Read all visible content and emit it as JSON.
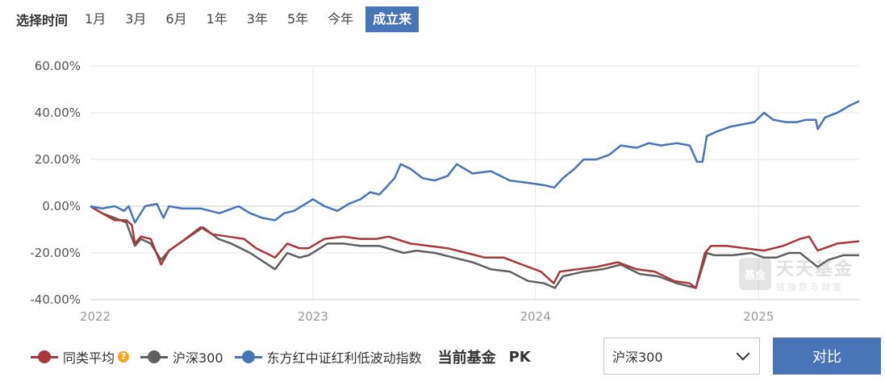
{
  "range_bar": {
    "label": "选择时间",
    "tabs": [
      "1月",
      "3月",
      "6月",
      "1年",
      "3年",
      "5年",
      "今年",
      "成立来"
    ],
    "active_index": 7
  },
  "watermark": {
    "logo": "基金",
    "title": "天天基金",
    "subtitle": "链接您与财富"
  },
  "legend": {
    "items": [
      {
        "label": "同类平均",
        "color": "#a8383b",
        "has_help": true
      },
      {
        "label": "沪深300",
        "color": "#606060",
        "has_help": false
      },
      {
        "label": "东方红中证红利低波动指数",
        "color": "#4a74b8",
        "has_help": false
      }
    ],
    "current_fund_label": "当前基金",
    "pk_label": "PK"
  },
  "compare": {
    "selected": "沪深300",
    "button_label": "对比"
  },
  "colors": {
    "accent": "#4a74b8",
    "peer": "#a8383b",
    "index": "#606060"
  },
  "chart_data": {
    "type": "line",
    "x_ticks": [
      "2022",
      "2023",
      "2024",
      "2025"
    ],
    "x_tick_dates": [
      "2022-01-01",
      "2023-01-01",
      "2024-01-01",
      "2025-01-01"
    ],
    "xlim": [
      "2022-01-01",
      "2025-06-15"
    ],
    "ylim": [
      -40,
      60
    ],
    "y_ticks": [
      -40,
      -20,
      0,
      20,
      40,
      60
    ],
    "y_tick_labels": [
      "-40.00%",
      "-20.00%",
      "0.00%",
      "20.00%",
      "40.00%",
      "60.00%"
    ],
    "grid": true,
    "legend_position": "bottom",
    "series": [
      {
        "name": "东方红中证红利低波动指数",
        "color": "#4a74b8",
        "points": [
          [
            "2022-01-01",
            0
          ],
          [
            "2022-01-20",
            -1
          ],
          [
            "2022-02-10",
            0
          ],
          [
            "2022-02-25",
            -2
          ],
          [
            "2022-03-05",
            0
          ],
          [
            "2022-03-15",
            -7
          ],
          [
            "2022-04-01",
            0
          ],
          [
            "2022-04-20",
            1
          ],
          [
            "2022-05-01",
            -5
          ],
          [
            "2022-05-10",
            0
          ],
          [
            "2022-06-01",
            -1
          ],
          [
            "2022-07-01",
            -1
          ],
          [
            "2022-08-01",
            -3
          ],
          [
            "2022-09-01",
            0
          ],
          [
            "2022-09-20",
            -3
          ],
          [
            "2022-10-10",
            -5
          ],
          [
            "2022-10-31",
            -6
          ],
          [
            "2022-11-15",
            -3
          ],
          [
            "2022-12-01",
            -2
          ],
          [
            "2022-12-20",
            1
          ],
          [
            "2023-01-01",
            3
          ],
          [
            "2023-01-20",
            0
          ],
          [
            "2023-02-10",
            -2
          ],
          [
            "2023-03-01",
            1
          ],
          [
            "2023-03-20",
            3
          ],
          [
            "2023-04-05",
            6
          ],
          [
            "2023-04-20",
            5
          ],
          [
            "2023-05-01",
            8
          ],
          [
            "2023-05-15",
            12
          ],
          [
            "2023-05-25",
            18
          ],
          [
            "2023-06-10",
            16
          ],
          [
            "2023-06-30",
            12
          ],
          [
            "2023-07-20",
            11
          ],
          [
            "2023-08-10",
            13
          ],
          [
            "2023-08-25",
            18
          ],
          [
            "2023-09-20",
            14
          ],
          [
            "2023-10-20",
            15
          ],
          [
            "2023-11-20",
            11
          ],
          [
            "2023-12-20",
            10
          ],
          [
            "2024-01-15",
            9
          ],
          [
            "2024-02-01",
            8
          ],
          [
            "2024-02-15",
            12
          ],
          [
            "2024-03-05",
            16
          ],
          [
            "2024-03-20",
            20
          ],
          [
            "2024-04-10",
            20
          ],
          [
            "2024-05-01",
            22
          ],
          [
            "2024-05-20",
            26
          ],
          [
            "2024-06-15",
            25
          ],
          [
            "2024-07-05",
            27
          ],
          [
            "2024-07-25",
            26
          ],
          [
            "2024-08-20",
            27
          ],
          [
            "2024-09-10",
            26
          ],
          [
            "2024-09-22",
            19
          ],
          [
            "2024-10-01",
            19
          ],
          [
            "2024-10-08",
            30
          ],
          [
            "2024-10-25",
            32
          ],
          [
            "2024-11-15",
            34
          ],
          [
            "2024-12-05",
            35
          ],
          [
            "2024-12-25",
            36
          ],
          [
            "2025-01-10",
            40
          ],
          [
            "2025-01-25",
            37
          ],
          [
            "2025-02-15",
            36
          ],
          [
            "2025-03-05",
            36
          ],
          [
            "2025-03-20",
            37
          ],
          [
            "2025-04-05",
            37
          ],
          [
            "2025-04-08",
            33
          ],
          [
            "2025-04-20",
            38
          ],
          [
            "2025-05-10",
            40
          ],
          [
            "2025-05-30",
            43
          ],
          [
            "2025-06-15",
            45
          ]
        ]
      },
      {
        "name": "同类平均",
        "color": "#a8383b",
        "points": [
          [
            "2022-01-01",
            0
          ],
          [
            "2022-01-20",
            -3
          ],
          [
            "2022-02-10",
            -6
          ],
          [
            "2022-03-01",
            -6
          ],
          [
            "2022-03-10",
            -8
          ],
          [
            "2022-03-15",
            -16
          ],
          [
            "2022-03-25",
            -13
          ],
          [
            "2022-04-10",
            -14
          ],
          [
            "2022-04-27",
            -25
          ],
          [
            "2022-05-10",
            -19
          ],
          [
            "2022-06-01",
            -15
          ],
          [
            "2022-07-01",
            -9
          ],
          [
            "2022-07-20",
            -12
          ],
          [
            "2022-08-15",
            -13
          ],
          [
            "2022-09-10",
            -14
          ],
          [
            "2022-09-30",
            -18
          ],
          [
            "2022-10-31",
            -22
          ],
          [
            "2022-11-20",
            -16
          ],
          [
            "2022-12-10",
            -18
          ],
          [
            "2022-12-25",
            -18
          ],
          [
            "2023-01-20",
            -14
          ],
          [
            "2023-02-20",
            -13
          ],
          [
            "2023-03-20",
            -14
          ],
          [
            "2023-04-15",
            -14
          ],
          [
            "2023-05-05",
            -13
          ],
          [
            "2023-06-10",
            -16
          ],
          [
            "2023-07-10",
            -17
          ],
          [
            "2023-08-10",
            -18
          ],
          [
            "2023-09-10",
            -20
          ],
          [
            "2023-10-10",
            -22
          ],
          [
            "2023-11-10",
            -22
          ],
          [
            "2023-12-10",
            -25
          ],
          [
            "2024-01-10",
            -28
          ],
          [
            "2024-01-31",
            -33
          ],
          [
            "2024-02-10",
            -28
          ],
          [
            "2024-03-10",
            -27
          ],
          [
            "2024-04-10",
            -26
          ],
          [
            "2024-05-15",
            -24
          ],
          [
            "2024-06-15",
            -27
          ],
          [
            "2024-07-15",
            -28
          ],
          [
            "2024-08-15",
            -32
          ],
          [
            "2024-09-10",
            -33
          ],
          [
            "2024-09-20",
            -35
          ],
          [
            "2024-10-05",
            -20
          ],
          [
            "2024-10-15",
            -17
          ],
          [
            "2024-11-10",
            -17
          ],
          [
            "2024-12-10",
            -18
          ],
          [
            "2025-01-10",
            -19
          ],
          [
            "2025-02-10",
            -17
          ],
          [
            "2025-03-10",
            -14
          ],
          [
            "2025-03-25",
            -13
          ],
          [
            "2025-04-08",
            -19
          ],
          [
            "2025-05-10",
            -16
          ],
          [
            "2025-06-15",
            -15
          ]
        ]
      },
      {
        "name": "沪深300",
        "color": "#606060",
        "points": [
          [
            "2022-01-01",
            0
          ],
          [
            "2022-01-20",
            -3
          ],
          [
            "2022-02-10",
            -5
          ],
          [
            "2022-03-01",
            -7
          ],
          [
            "2022-03-15",
            -17
          ],
          [
            "2022-03-25",
            -14
          ],
          [
            "2022-04-10",
            -16
          ],
          [
            "2022-04-27",
            -23
          ],
          [
            "2022-05-10",
            -19
          ],
          [
            "2022-06-01",
            -15
          ],
          [
            "2022-07-05",
            -9
          ],
          [
            "2022-07-30",
            -14
          ],
          [
            "2022-08-20",
            -16
          ],
          [
            "2022-09-20",
            -20
          ],
          [
            "2022-10-31",
            -27
          ],
          [
            "2022-11-20",
            -20
          ],
          [
            "2022-12-10",
            -22
          ],
          [
            "2022-12-25",
            -21
          ],
          [
            "2023-01-25",
            -16
          ],
          [
            "2023-02-20",
            -16
          ],
          [
            "2023-03-20",
            -17
          ],
          [
            "2023-04-20",
            -17
          ],
          [
            "2023-05-30",
            -20
          ],
          [
            "2023-06-20",
            -19
          ],
          [
            "2023-07-20",
            -20
          ],
          [
            "2023-08-20",
            -22
          ],
          [
            "2023-09-20",
            -24
          ],
          [
            "2023-10-20",
            -27
          ],
          [
            "2023-11-20",
            -28
          ],
          [
            "2023-12-20",
            -32
          ],
          [
            "2024-01-15",
            -33
          ],
          [
            "2024-02-02",
            -35
          ],
          [
            "2024-02-15",
            -30
          ],
          [
            "2024-03-20",
            -28
          ],
          [
            "2024-04-20",
            -27
          ],
          [
            "2024-05-20",
            -25
          ],
          [
            "2024-06-20",
            -29
          ],
          [
            "2024-07-20",
            -30
          ],
          [
            "2024-08-20",
            -33
          ],
          [
            "2024-09-20",
            -35
          ],
          [
            "2024-10-08",
            -20
          ],
          [
            "2024-10-20",
            -21
          ],
          [
            "2024-11-20",
            -21
          ],
          [
            "2024-12-20",
            -20
          ],
          [
            "2025-01-10",
            -22
          ],
          [
            "2025-01-30",
            -22
          ],
          [
            "2025-02-20",
            -20
          ],
          [
            "2025-03-10",
            -20
          ],
          [
            "2025-04-08",
            -26
          ],
          [
            "2025-04-25",
            -23
          ],
          [
            "2025-05-20",
            -21
          ],
          [
            "2025-06-15",
            -21
          ]
        ]
      }
    ]
  }
}
